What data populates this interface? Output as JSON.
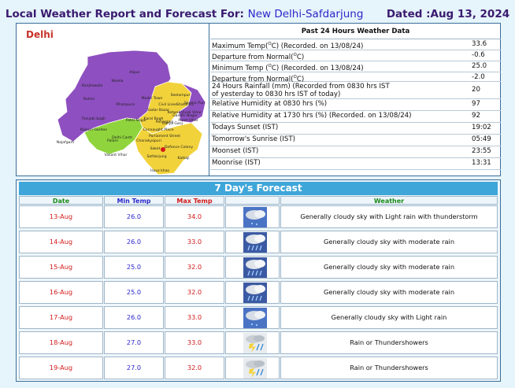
{
  "header": {
    "title": "Local Weather Report and Forecast For:",
    "station": "New Delhi-Safdarjung",
    "dated": "Dated :Aug 13, 2024"
  },
  "map": {
    "title": "Delhi",
    "districts": [
      "Narela",
      "Rohini",
      "Model Town",
      "Alipur",
      "Kanjhawala",
      "Pitampura",
      "Sadar Bazar",
      "Seelampur",
      "Shahdara",
      "Seema Puri",
      "Vivek Vihar",
      "Preet Vihar",
      "Gandhi Nagar",
      "Kotwali",
      "Civil Lines",
      "Punjabi bagh",
      "Patel Nagar",
      "Karol Bagh",
      "Rajouri Garden",
      "Darya Ganj",
      "Paharganj",
      "Najafgarh",
      "Delhi Cantt",
      "Connaught Place",
      "Palam",
      "Parliament Street",
      "Chanakyapuri",
      "Vasant Vihar",
      "Defence Colony",
      "Saket",
      "Safdarjung",
      "Kalkaji",
      "Hauz khas"
    ]
  },
  "observations": {
    "title": "Past 24 Hours Weather Data",
    "rows": [
      {
        "pre": "Maximum Temp(",
        "unit": "O",
        "post": "C) (Recorded. on 13/08/24)",
        "value": "33.6"
      },
      {
        "pre": "Departure from Normal(",
        "unit": "O",
        "post": "C)",
        "value": "-0.6"
      },
      {
        "pre": "Minimum Temp (",
        "unit": "O",
        "post": "C) (Recorded. on 13/08/24)",
        "value": "25.0"
      },
      {
        "pre": "Departure from Normal(",
        "unit": "O",
        "post": "C)",
        "value": "-2.0"
      },
      {
        "pre": "24 Hours Rainfall (mm) (Recorded from 0830 hrs IST",
        "line2": "of yesterday to 0830 hrs IST of today)",
        "value": "20"
      },
      {
        "pre": "Relative Humidity at 0830 hrs (%)",
        "value": "97"
      },
      {
        "pre": "Relative Humidity at 1730 hrs (%) (Recorded. on 13/08/24)",
        "value": "92"
      },
      {
        "pre": "Todays Sunset (IST)",
        "value": "19:02"
      },
      {
        "pre": "Tomorrow's Sunrise (IST)",
        "value": "05:49"
      },
      {
        "pre": "Moonset (IST)",
        "value": "23:55"
      },
      {
        "pre": "Moonrise (IST)",
        "value": "13:31"
      }
    ]
  },
  "forecast": {
    "title": "7 Day's Forecast",
    "headers": {
      "date": "Date",
      "min": "Min Temp",
      "max": "Max Temp",
      "weather": "Weather"
    },
    "days": [
      {
        "date": "13-Aug",
        "min": "26.0",
        "max": "34.0",
        "weather": "Generally cloudy sky with Light rain with thunderstorm",
        "icon": "cloud-light-rain-icon"
      },
      {
        "date": "14-Aug",
        "min": "26.0",
        "max": "33.0",
        "weather": "Generally cloudy sky with moderate rain",
        "icon": "cloud-moderate-rain-icon"
      },
      {
        "date": "15-Aug",
        "min": "25.0",
        "max": "32.0",
        "weather": "Generally cloudy sky with moderate rain",
        "icon": "cloud-moderate-rain-icon"
      },
      {
        "date": "16-Aug",
        "min": "25.0",
        "max": "32.0",
        "weather": "Generally cloudy sky with moderate rain",
        "icon": "cloud-moderate-rain-icon"
      },
      {
        "date": "17-Aug",
        "min": "26.0",
        "max": "33.0",
        "weather": "Generally cloudy sky with Light rain",
        "icon": "cloud-light-rain-icon"
      },
      {
        "date": "18-Aug",
        "min": "27.0",
        "max": "33.0",
        "weather": "Rain or Thundershowers",
        "icon": "thunderstorm-icon"
      },
      {
        "date": "19-Aug",
        "min": "27.0",
        "max": "32.0",
        "weather": "Rain or Thundershowers",
        "icon": "thunderstorm-icon"
      }
    ]
  },
  "colors": {
    "accent": "#3fa6d9",
    "date_green": "#1a8a1a",
    "min_blue": "#2a27c9",
    "max_red": "#d21a1a",
    "map_purple": "#8e4fc0",
    "map_yellow": "#f2d23b",
    "map_green": "#8fd43c"
  }
}
